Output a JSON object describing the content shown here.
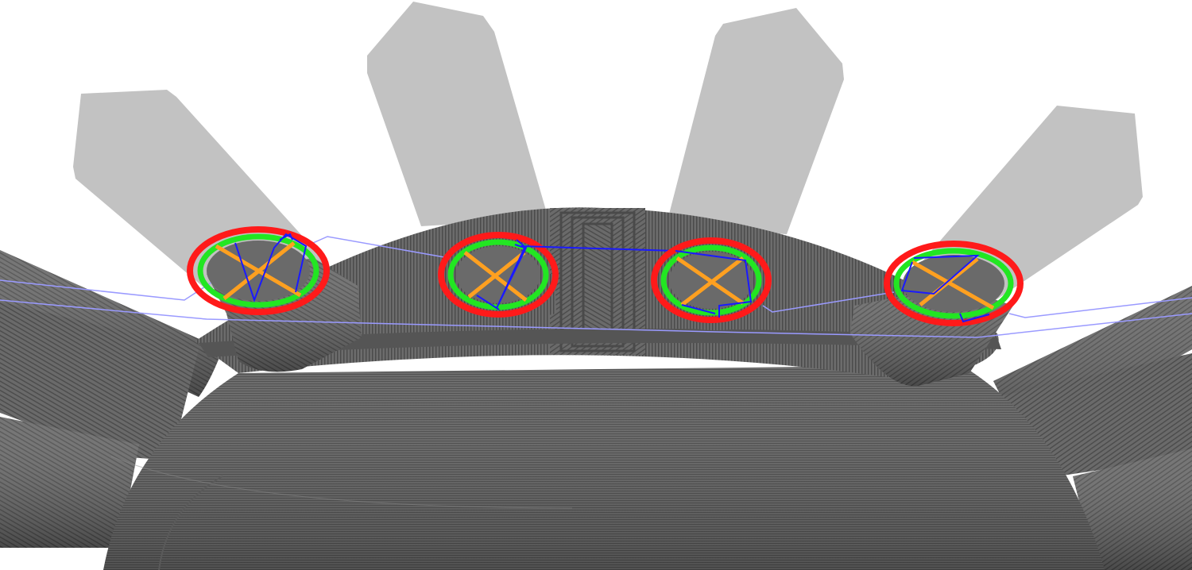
{
  "viewer": {
    "background_color": "#ffffff",
    "model_color": "#7a7a7a",
    "upcoming_layer_color": "#c2c2c2"
  },
  "legend_colors": {
    "outer_perimeter": "#ff1a1a",
    "inner_perimeter": "#22e622",
    "infill": "#ffa020",
    "travel_move": "#1a1aff",
    "travel_light": "#9a9aff"
  },
  "toolpath_icons": {
    "outer_perimeter": "circle-outline-icon",
    "infill": "cross-infill-icon",
    "travel": "travel-line-icon"
  },
  "pegs": [
    {
      "name": "peg-1"
    },
    {
      "name": "peg-2"
    },
    {
      "name": "peg-3"
    },
    {
      "name": "peg-4"
    }
  ]
}
